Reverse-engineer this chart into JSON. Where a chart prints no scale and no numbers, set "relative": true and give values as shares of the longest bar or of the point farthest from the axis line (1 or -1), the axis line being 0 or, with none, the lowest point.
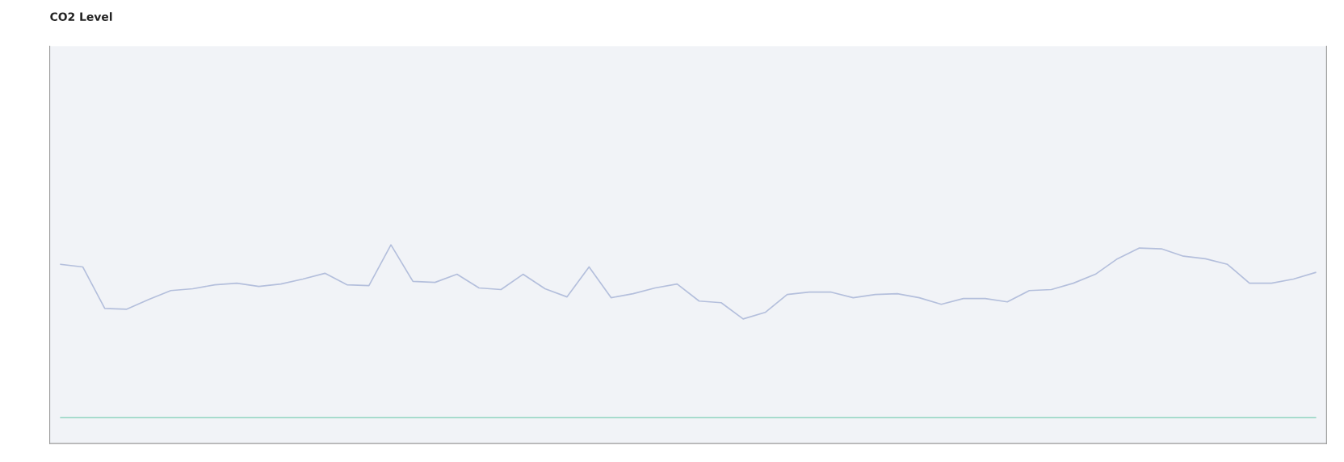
{
  "chart_data": {
    "type": "line",
    "title": "CO2 Level",
    "relative": true,
    "grid": false,
    "legend": false,
    "categories": [
      null,
      null,
      null,
      null,
      null,
      null,
      null,
      null,
      null,
      null,
      null,
      null,
      null,
      null,
      null,
      null,
      null,
      null,
      null,
      null,
      null,
      null,
      null,
      null,
      null,
      null,
      null,
      null,
      null,
      null,
      null,
      null,
      null,
      null,
      null,
      null,
      null,
      null,
      null,
      null,
      null,
      null,
      null,
      null,
      null,
      null,
      null,
      null,
      null,
      null,
      null,
      null,
      null,
      null,
      null,
      null,
      null,
      null
    ],
    "series": [
      {
        "color": "#b4bfdc",
        "values": [
          0.902,
          0.889,
          0.68,
          0.676,
          0.725,
          0.77,
          0.779,
          0.799,
          0.807,
          0.791,
          0.803,
          0.828,
          0.857,
          0.799,
          0.795,
          1.0,
          0.816,
          0.811,
          0.852,
          0.783,
          0.775,
          0.852,
          0.779,
          0.738,
          0.889,
          0.734,
          0.754,
          0.783,
          0.803,
          0.717,
          0.709,
          0.627,
          0.66,
          0.75,
          0.762,
          0.762,
          0.734,
          0.75,
          0.754,
          0.734,
          0.701,
          0.73,
          0.73,
          0.713,
          0.77,
          0.775,
          0.807,
          0.852,
          0.93,
          0.984,
          0.98,
          0.943,
          0.93,
          0.902,
          0.807,
          0.807,
          0.828,
          0.861
        ]
      },
      {
        "color": "#9fd8c8",
        "values": [
          0.131,
          0.131,
          0.131,
          0.131,
          0.131,
          0.131,
          0.131,
          0.131,
          0.131,
          0.131,
          0.131,
          0.131,
          0.131,
          0.131,
          0.131,
          0.131,
          0.131,
          0.131,
          0.131,
          0.131,
          0.131,
          0.131,
          0.131,
          0.131,
          0.131,
          0.131,
          0.131,
          0.131,
          0.131,
          0.131,
          0.131,
          0.131,
          0.131,
          0.131,
          0.131,
          0.131,
          0.131,
          0.131,
          0.131,
          0.131,
          0.131,
          0.131,
          0.131,
          0.131,
          0.131,
          0.131,
          0.131,
          0.131,
          0.131,
          0.131,
          0.131,
          0.131,
          0.131,
          0.131,
          0.131,
          0.131,
          0.131,
          0.131
        ]
      }
    ]
  }
}
